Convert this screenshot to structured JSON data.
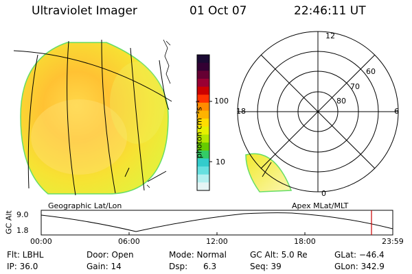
{
  "header": {
    "title": "Ultraviolet Imager",
    "date": "01 Oct 07",
    "time": "22:46:11 UT"
  },
  "colorbar": {
    "label": "photon cm⁻²s⁻¹",
    "tick_high": "100",
    "tick_low": "10",
    "colors": [
      "#1a0a33",
      "#330033",
      "#660033",
      "#990033",
      "#cc0000",
      "#ff3300",
      "#ff8c00",
      "#ffb300",
      "#ffdd00",
      "#e6f000",
      "#b3e600",
      "#66cc00",
      "#33cc66",
      "#33cccc",
      "#66e0e0",
      "#b3f0f0",
      "#e6f5f5"
    ]
  },
  "polar_plot": {
    "lat_labels": [
      "60",
      "70",
      "80"
    ],
    "mlt_labels": {
      "top": "12",
      "left": "18",
      "right": "6",
      "bottom": "0"
    }
  },
  "timeline": {
    "left_label": "Geographic Lat/Lon",
    "right_label": "Apex MLat/MLT",
    "axis_label": "GC Alt",
    "y_top": "9.0",
    "y_bottom": "1.8",
    "time_ticks": [
      "00:00",
      "06:00",
      "12:00",
      "18:00",
      "23:59"
    ],
    "marker_color": "#cc0000"
  },
  "info": {
    "row1": [
      {
        "label": "Flt: LBHL"
      },
      {
        "label": "Door: Open"
      },
      {
        "label": "Mode: Normal"
      },
      {
        "label": "GC Alt: 5.0 Re"
      },
      {
        "label": "GLat: −46.4"
      }
    ],
    "row2": [
      {
        "label": "IP: 36.0"
      },
      {
        "label": "Gain: 14"
      },
      {
        "label": "Dsp:      6.3"
      },
      {
        "label": "Seq: 39"
      },
      {
        "label": "GLon: 342.9"
      }
    ]
  }
}
